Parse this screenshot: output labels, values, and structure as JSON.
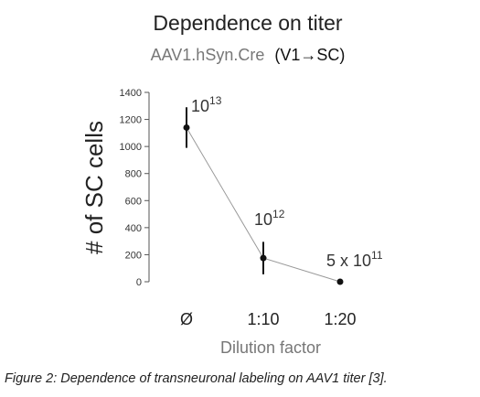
{
  "chart_data": {
    "type": "line",
    "title": "Dependence on titer",
    "subtitle_gray": "AAV1.hSyn.Cre",
    "subtitle_black": "(V1→SC)",
    "xlabel": "Dilution factor",
    "ylabel": "# of SC cells",
    "categories": [
      "Ø",
      "1:10",
      "1:20"
    ],
    "values": [
      1140,
      175,
      0
    ],
    "errors": [
      150,
      120,
      0
    ],
    "annotations": [
      {
        "base": "10",
        "exp": "13"
      },
      {
        "base": "10",
        "exp": "12"
      },
      {
        "base": "5 x 10",
        "exp": "11"
      }
    ],
    "ylim": [
      0,
      1400
    ],
    "yticks": [
      0,
      200,
      400,
      600,
      800,
      1000,
      1200,
      1400
    ],
    "grid": false,
    "legend": "none",
    "colors": {
      "line": "#999999",
      "marker": "#111111",
      "text": "#333333",
      "subtitle_gray": "#777777"
    }
  },
  "caption": "Figure 2: Dependence of transneuronal labeling on AAV1 titer [3]."
}
